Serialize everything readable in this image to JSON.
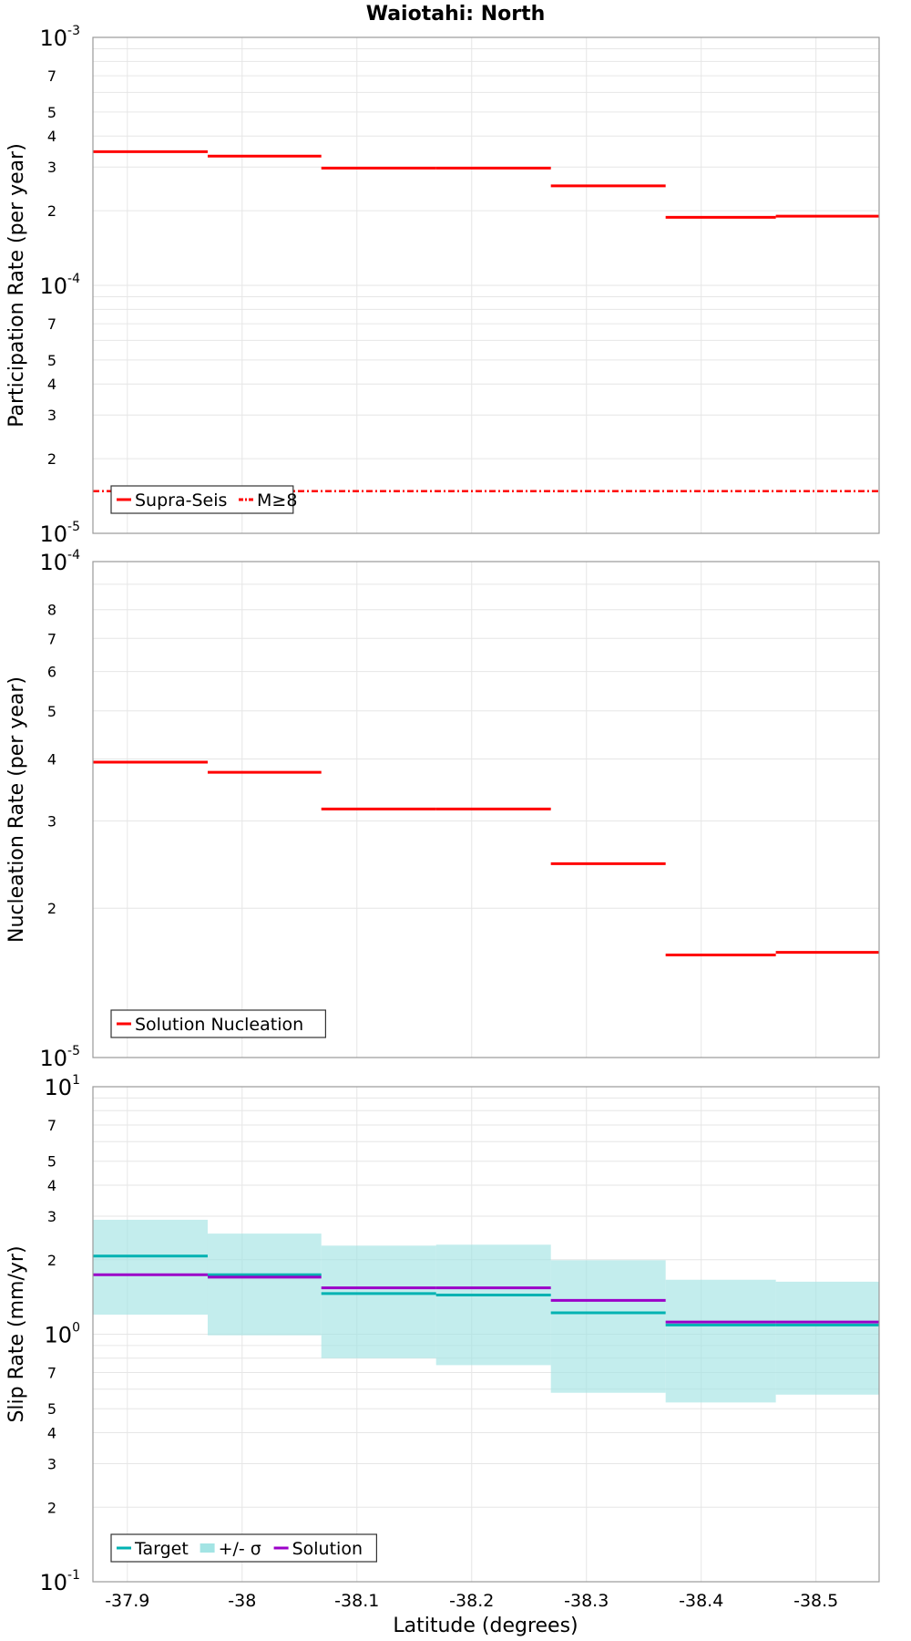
{
  "chart_data": {
    "title": "Waiotahi: North",
    "xlabel": "Latitude (degrees)",
    "x_ticks": [
      "-37.9",
      "-38",
      "-38.1",
      "-38.2",
      "-38.3",
      "-38.4",
      "-38.5"
    ],
    "x_tick_values": [
      -37.9,
      -38.0,
      -38.1,
      -38.2,
      -38.3,
      -38.4,
      -38.5
    ],
    "x_range": [
      -37.87,
      -38.555
    ],
    "segment_bounds": [
      -37.87,
      -37.97,
      -38.069,
      -38.169,
      -38.269,
      -38.369,
      -38.465,
      -38.555
    ],
    "panels": [
      {
        "type": "step-line",
        "ylabel": "Participation Rate (per year)",
        "yscale": "log",
        "ylim": [
          1e-05,
          0.001
        ],
        "major_tick_labels": [
          {
            "base": "10",
            "exp": "-3"
          },
          {
            "base": "10",
            "exp": "-4"
          },
          {
            "base": "10",
            "exp": "-5"
          }
        ],
        "minor_tick_labels": [
          "7",
          "5",
          "4",
          "3",
          "2"
        ],
        "series": [
          {
            "name": "Supra-Seis",
            "color": "#ff0000",
            "style": "solid",
            "values": [
              0.000346,
              0.000332,
              0.000297,
              0.000297,
              0.000252,
              0.000188,
              0.00019
            ]
          },
          {
            "name": "M≥8",
            "color": "#ff0000",
            "style": "dash-dot",
            "constant": 1.48e-05
          }
        ],
        "legend": [
          "Supra-Seis",
          "M≥8"
        ],
        "legend_position": "bottom-left"
      },
      {
        "type": "step-line",
        "ylabel": "Nucleation Rate (per year)",
        "yscale": "log",
        "ylim": [
          1e-05,
          0.0001
        ],
        "major_tick_labels": [
          {
            "base": "10",
            "exp": "-4"
          },
          {
            "base": "10",
            "exp": "-5"
          }
        ],
        "minor_tick_labels": [
          "8",
          "7",
          "6",
          "5",
          "4",
          "3",
          "2"
        ],
        "series": [
          {
            "name": "Solution Nucleation",
            "color": "#ff0000",
            "style": "solid",
            "values": [
              3.94e-05,
              3.76e-05,
              3.17e-05,
              3.17e-05,
              2.46e-05,
              1.61e-05,
              1.63e-05
            ]
          }
        ],
        "legend": [
          "Solution Nucleation"
        ],
        "legend_position": "bottom-left"
      },
      {
        "type": "step-line",
        "ylabel": "Slip Rate (mm/yr)",
        "yscale": "log",
        "ylim": [
          0.1,
          10
        ],
        "major_tick_labels": [
          {
            "base": "10",
            "exp": "1"
          },
          {
            "base": "10",
            "exp": "0"
          },
          {
            "base": "10",
            "exp": "-1"
          }
        ],
        "minor_tick_labels": [
          "7",
          "5",
          "4",
          "3",
          "2"
        ],
        "band": {
          "name": "+/- σ",
          "color": "#a3e4e4",
          "lower": [
            1.2,
            0.99,
            0.8,
            0.75,
            0.58,
            0.53,
            0.57
          ],
          "upper": [
            2.9,
            2.55,
            2.28,
            2.3,
            1.99,
            1.66,
            1.63
          ]
        },
        "series": [
          {
            "name": "Target",
            "color": "#00b2b2",
            "style": "solid",
            "values": [
              2.07,
              1.74,
              1.46,
              1.44,
              1.22,
              1.09,
              1.09
            ]
          },
          {
            "name": "Solution",
            "color": "#9b00c8",
            "style": "solid",
            "values": [
              1.74,
              1.7,
              1.54,
              1.54,
              1.37,
              1.12,
              1.12
            ]
          }
        ],
        "legend": [
          "Target",
          "+/- σ",
          "Solution"
        ],
        "legend_position": "bottom-left"
      }
    ]
  }
}
